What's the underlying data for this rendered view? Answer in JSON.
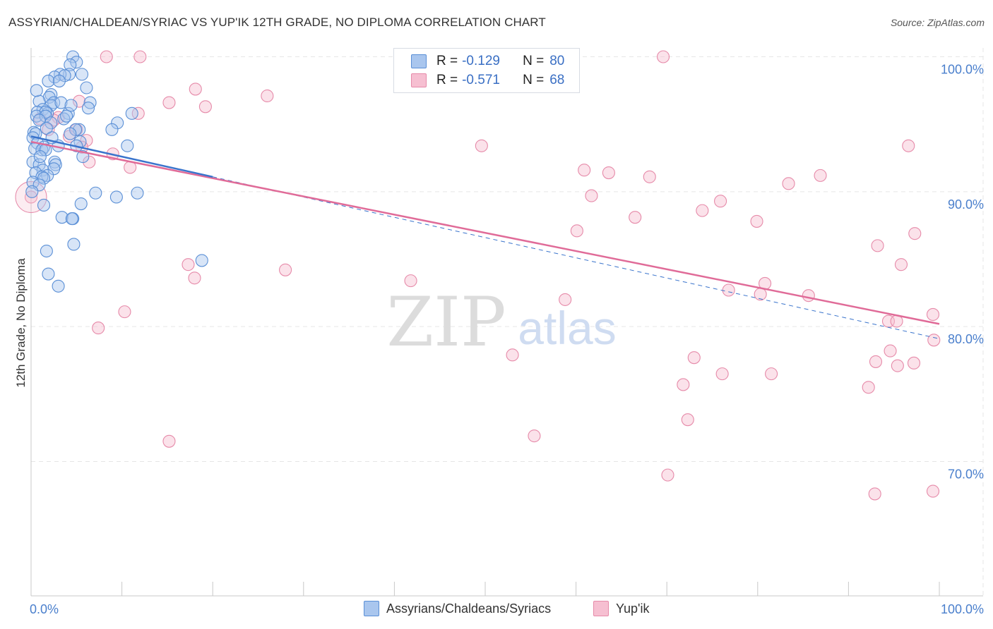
{
  "title": "ASSYRIAN/CHALDEAN/SYRIAC VS YUP'IK 12TH GRADE, NO DIPLOMA CORRELATION CHART",
  "source": "Source: ZipAtlas.com",
  "watermark": {
    "zip": "ZIP",
    "atlas": "atlas"
  },
  "legend": {
    "rows": [
      {
        "r_label": "R = ",
        "r_value": "-0.129",
        "n_label": "N = ",
        "n_value": "80"
      },
      {
        "r_label": "R = ",
        "r_value": "-0.571",
        "n_label": "N = ",
        "n_value": "68"
      }
    ]
  },
  "bottom_legend": [
    {
      "label": "Assyrians/Chaldeans/Syriacs"
    },
    {
      "label": "Yup'ik"
    }
  ],
  "colors": {
    "blue_fill": "#a9c6ee",
    "blue_stroke": "#5a8fd6",
    "blue_line": "#3a74cc",
    "pink_fill": "#f6bfd1",
    "pink_stroke": "#e68aa9",
    "pink_line": "#e06b98",
    "axis_text": "#4a7fcc",
    "grid": "#e6e6e6"
  },
  "chart_data": {
    "type": "scatter",
    "title": "ASSYRIAN/CHALDEAN/SYRIAC VS YUP'IK 12TH GRADE, NO DIPLOMA CORRELATION CHART",
    "xlabel": "",
    "ylabel": "12th Grade, No Diploma",
    "xlim": [
      0,
      100
    ],
    "ylim": [
      59,
      101
    ],
    "x_tick_labels": [
      "0.0%",
      "100.0%"
    ],
    "y_ticks": [
      {
        "value": 100,
        "label": "100.0%"
      },
      {
        "value": 90,
        "label": "90.0%"
      },
      {
        "value": 80,
        "label": "80.0%"
      },
      {
        "value": 70,
        "label": "70.0%"
      }
    ],
    "series": [
      {
        "name": "Assyrians/Chaldeans/Syriacs",
        "color": "blue",
        "r": -0.129,
        "n": 80,
        "trend": {
          "x0": 0,
          "y0": 94.1,
          "x1": 20,
          "y1": 91.1,
          "dash_to_x": 100,
          "dash_to_y": 79.1
        },
        "points": [
          [
            4.6,
            100.0
          ],
          [
            5.0,
            99.6
          ],
          [
            4.3,
            99.4
          ],
          [
            4.2,
            98.7
          ],
          [
            3.2,
            98.7
          ],
          [
            5.6,
            98.7
          ],
          [
            2.6,
            98.5
          ],
          [
            3.7,
            98.6
          ],
          [
            1.9,
            98.2
          ],
          [
            3.1,
            98.2
          ],
          [
            6.1,
            97.7
          ],
          [
            2.2,
            97.2
          ],
          [
            2.0,
            97.0
          ],
          [
            0.9,
            96.7
          ],
          [
            2.5,
            96.6
          ],
          [
            2.2,
            96.4
          ],
          [
            3.3,
            96.6
          ],
          [
            6.5,
            96.6
          ],
          [
            6.3,
            96.2
          ],
          [
            1.3,
            96.1
          ],
          [
            0.7,
            95.9
          ],
          [
            1.8,
            95.8
          ],
          [
            1.6,
            95.9
          ],
          [
            4.1,
            95.8
          ],
          [
            0.6,
            95.6
          ],
          [
            11.1,
            95.8
          ],
          [
            1.6,
            95.6
          ],
          [
            0.9,
            95.3
          ],
          [
            3.6,
            95.4
          ],
          [
            2.2,
            95.1
          ],
          [
            9.5,
            95.1
          ],
          [
            1.7,
            94.7
          ],
          [
            5.3,
            94.6
          ],
          [
            4.9,
            94.6
          ],
          [
            8.9,
            94.6
          ],
          [
            0.3,
            94.4
          ],
          [
            4.3,
            94.3
          ],
          [
            0.5,
            94.3
          ],
          [
            0.2,
            94.0
          ],
          [
            5.4,
            93.7
          ],
          [
            0.7,
            93.6
          ],
          [
            3.0,
            93.4
          ],
          [
            5.0,
            93.4
          ],
          [
            10.6,
            93.4
          ],
          [
            1.4,
            93.3
          ],
          [
            0.4,
            93.2
          ],
          [
            1.2,
            93.1
          ],
          [
            1.6,
            93.1
          ],
          [
            5.7,
            92.6
          ],
          [
            2.6,
            92.2
          ],
          [
            0.2,
            92.2
          ],
          [
            0.9,
            92.0
          ],
          [
            2.7,
            92.0
          ],
          [
            2.5,
            91.7
          ],
          [
            1.3,
            91.6
          ],
          [
            0.5,
            91.4
          ],
          [
            1.8,
            91.2
          ],
          [
            1.2,
            91.1
          ],
          [
            1.4,
            91.0
          ],
          [
            0.2,
            90.7
          ],
          [
            0.9,
            90.5
          ],
          [
            11.7,
            89.9
          ],
          [
            7.1,
            89.9
          ],
          [
            9.4,
            89.6
          ],
          [
            5.5,
            89.1
          ],
          [
            1.4,
            89.0
          ],
          [
            3.4,
            88.1
          ],
          [
            4.6,
            88.0
          ],
          [
            4.5,
            88.0
          ],
          [
            4.7,
            86.1
          ],
          [
            1.7,
            85.6
          ],
          [
            18.8,
            84.9
          ],
          [
            1.9,
            83.9
          ],
          [
            3.0,
            83.0
          ],
          [
            0.1,
            90.0
          ],
          [
            1.0,
            92.6
          ],
          [
            2.3,
            94.0
          ],
          [
            3.9,
            95.6
          ],
          [
            4.4,
            96.4
          ],
          [
            0.6,
            97.5
          ]
        ]
      },
      {
        "name": "Yup'ik",
        "color": "pink",
        "r": -0.571,
        "n": 68,
        "trend": {
          "x0": 0,
          "y0": 93.7,
          "x1": 100,
          "y1": 80.2
        },
        "points": [
          [
            8.3,
            100.0
          ],
          [
            12.0,
            100.0
          ],
          [
            69.6,
            100.0
          ],
          [
            18.1,
            97.6
          ],
          [
            26.0,
            97.1
          ],
          [
            15.2,
            96.6
          ],
          [
            5.3,
            96.7
          ],
          [
            19.2,
            96.3
          ],
          [
            11.8,
            95.8
          ],
          [
            3.0,
            95.5
          ],
          [
            1.0,
            95.4
          ],
          [
            2.5,
            95.3
          ],
          [
            5.0,
            94.6
          ],
          [
            1.9,
            94.6
          ],
          [
            4.2,
            94.1
          ],
          [
            6.1,
            93.8
          ],
          [
            5.6,
            93.3
          ],
          [
            49.6,
            93.4
          ],
          [
            96.6,
            93.4
          ],
          [
            9.0,
            92.8
          ],
          [
            6.4,
            92.2
          ],
          [
            10.9,
            91.8
          ],
          [
            60.9,
            91.6
          ],
          [
            63.6,
            91.4
          ],
          [
            68.1,
            91.1
          ],
          [
            86.9,
            91.2
          ],
          [
            83.4,
            90.6
          ],
          [
            61.7,
            89.7
          ],
          [
            73.9,
            88.6
          ],
          [
            75.9,
            89.3
          ],
          [
            66.5,
            88.1
          ],
          [
            79.9,
            87.8
          ],
          [
            60.1,
            87.1
          ],
          [
            97.3,
            86.9
          ],
          [
            93.2,
            86.0
          ],
          [
            0.0,
            89.6
          ],
          [
            17.3,
            84.6
          ],
          [
            28.0,
            84.2
          ],
          [
            18.0,
            83.6
          ],
          [
            41.8,
            83.4
          ],
          [
            80.8,
            83.2
          ],
          [
            95.8,
            84.6
          ],
          [
            76.8,
            82.7
          ],
          [
            80.3,
            82.4
          ],
          [
            85.6,
            82.3
          ],
          [
            58.8,
            82.0
          ],
          [
            10.3,
            81.1
          ],
          [
            99.3,
            80.9
          ],
          [
            94.4,
            80.4
          ],
          [
            95.3,
            80.4
          ],
          [
            7.4,
            79.9
          ],
          [
            73.0,
            77.7
          ],
          [
            93.0,
            77.4
          ],
          [
            95.4,
            77.1
          ],
          [
            97.2,
            77.3
          ],
          [
            76.1,
            76.5
          ],
          [
            81.5,
            76.5
          ],
          [
            71.8,
            75.7
          ],
          [
            92.2,
            75.5
          ],
          [
            72.3,
            73.1
          ],
          [
            15.2,
            71.5
          ],
          [
            55.4,
            71.9
          ],
          [
            70.1,
            69.0
          ],
          [
            92.9,
            67.6
          ],
          [
            99.3,
            67.8
          ],
          [
            94.6,
            78.2
          ],
          [
            53.0,
            77.9
          ],
          [
            99.4,
            79.0
          ]
        ]
      }
    ]
  }
}
